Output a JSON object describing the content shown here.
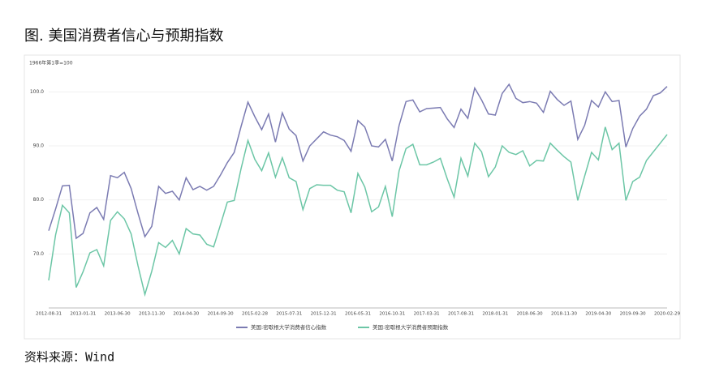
{
  "title": "图. 美国消费者信心与预期指数",
  "source": "资料来源：Wind",
  "chart_data": {
    "type": "line",
    "y_axis_label": "1966年第1季=100",
    "categories": [
      "2012-08-31",
      null,
      null,
      null,
      null,
      "2013-01-31",
      null,
      null,
      null,
      null,
      "2013-06-30",
      null,
      null,
      null,
      null,
      "2013-11-30",
      null,
      null,
      null,
      null,
      "2014-04-30",
      null,
      null,
      null,
      null,
      "2014-09-30",
      null,
      null,
      null,
      null,
      "2015-02-28",
      null,
      null,
      null,
      null,
      "2015-07-31",
      null,
      null,
      null,
      null,
      "2015-12-31",
      null,
      null,
      null,
      null,
      "2016-05-31",
      null,
      null,
      null,
      null,
      "2016-10-31",
      null,
      null,
      null,
      null,
      "2017-03-31",
      null,
      null,
      null,
      null,
      "2017-08-31",
      null,
      null,
      null,
      null,
      "2018-01-31",
      null,
      null,
      null,
      null,
      "2018-06-30",
      null,
      null,
      null,
      null,
      "2018-11-30",
      null,
      null,
      null,
      null,
      "2019-04-30",
      null,
      null,
      null,
      null,
      "2019-09-30",
      null,
      null,
      null,
      null,
      "2020-02-29"
    ],
    "series": [
      {
        "name": "美国:密歇根大学消费者信心指数",
        "color": "#7b7bb2",
        "values": [
          74.3,
          78.3,
          82.6,
          82.7,
          72.9,
          73.8,
          77.6,
          78.6,
          76.4,
          84.5,
          84.1,
          85.1,
          82.1,
          77.5,
          73.2,
          75.1,
          82.5,
          81.2,
          81.6,
          80.0,
          84.1,
          81.9,
          82.5,
          81.8,
          82.5,
          84.6,
          86.9,
          88.8,
          93.6,
          98.1,
          95.4,
          93.0,
          95.9,
          90.7,
          96.1,
          93.1,
          91.9,
          87.2,
          90.0,
          91.3,
          92.6,
          92.0,
          91.7,
          91.0,
          89.0,
          94.7,
          93.5,
          90.0,
          89.8,
          91.2,
          87.2,
          93.8,
          98.2,
          98.5,
          96.3,
          96.9,
          97.0,
          97.1,
          95.0,
          93.4,
          96.8,
          95.1,
          100.7,
          98.5,
          95.9,
          95.7,
          99.7,
          101.4,
          98.8,
          98.0,
          98.2,
          97.9,
          96.2,
          100.1,
          98.6,
          97.5,
          98.3,
          91.2,
          93.8,
          98.4,
          97.2,
          100.0,
          98.2,
          98.4,
          89.8,
          93.2,
          95.5,
          96.8,
          99.3,
          99.8,
          101.0
        ]
      },
      {
        "name": "美国:密歇根大学消费者预期指数",
        "color": "#6cc6a6",
        "values": [
          65.1,
          73.5,
          79.0,
          77.6,
          63.8,
          66.7,
          70.2,
          70.8,
          67.8,
          76.2,
          77.8,
          76.5,
          73.7,
          67.8,
          62.5,
          66.8,
          72.1,
          71.2,
          72.5,
          70.0,
          74.7,
          73.7,
          73.5,
          71.8,
          71.3,
          75.4,
          79.6,
          79.9,
          85.8,
          91.0,
          87.5,
          85.4,
          88.7,
          84.2,
          87.8,
          84.1,
          83.4,
          78.2,
          82.1,
          82.8,
          82.7,
          82.7,
          81.8,
          81.5,
          77.6,
          84.9,
          82.4,
          77.8,
          78.7,
          82.5,
          76.9,
          85.4,
          89.5,
          90.3,
          86.5,
          86.5,
          87.0,
          87.7,
          83.9,
          80.5,
          87.7,
          84.4,
          90.5,
          88.9,
          84.3,
          86.1,
          90.0,
          88.8,
          88.4,
          89.1,
          86.3,
          87.3,
          87.2,
          90.5,
          89.2,
          88.0,
          87.0,
          79.9,
          84.4,
          88.8,
          87.4,
          93.5,
          89.3,
          90.5,
          79.9,
          83.4,
          84.2,
          87.3,
          88.9,
          90.5,
          92.1
        ]
      }
    ],
    "ylim": [
      60,
      105
    ],
    "yticks": [
      {
        "value": 70,
        "label": "70.0"
      },
      {
        "value": 80,
        "label": "80.0"
      },
      {
        "value": 90,
        "label": "90.0"
      },
      {
        "value": 100,
        "label": "100.0"
      }
    ],
    "grid": true,
    "legend": "bottom"
  }
}
